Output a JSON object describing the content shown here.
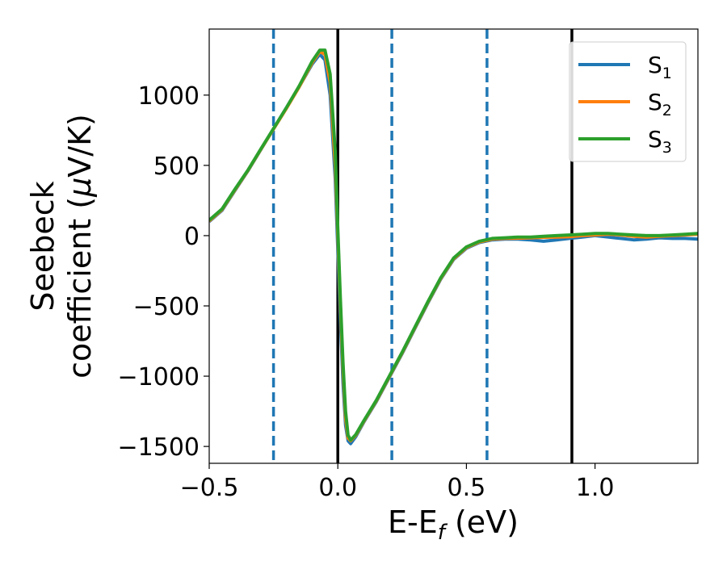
{
  "chart_data": {
    "type": "line",
    "xlabel": {
      "main": "E-E",
      "sub": "f",
      "unit": " (eV)"
    },
    "ylabel": {
      "line1": "Seebeck",
      "line2": "coefficient  (",
      "mu": "μ",
      "line2_end": "V/K)"
    },
    "xlim": [
      -0.5,
      1.4
    ],
    "ylim": [
      -1620,
      1470
    ],
    "xticks": [
      {
        "value": -0.5,
        "label": "−0.5"
      },
      {
        "value": 0.0,
        "label": "0.0"
      },
      {
        "value": 0.5,
        "label": "0.5"
      },
      {
        "value": 1.0,
        "label": "1.0"
      }
    ],
    "yticks": [
      {
        "value": 1000,
        "label": "1000"
      },
      {
        "value": 500,
        "label": "500"
      },
      {
        "value": 0,
        "label": "0"
      },
      {
        "value": -500,
        "label": "−500"
      },
      {
        "value": -1000,
        "label": "−1000"
      },
      {
        "value": -1500,
        "label": "−1500"
      }
    ],
    "grid": false,
    "legend_position": "top-right",
    "vlines_solid": [
      0.0,
      0.91
    ],
    "vlines_dashed": [
      -0.25,
      0.21,
      0.58
    ],
    "vline_solid_color": "#000000",
    "vline_dashed_color": "#1f77b4",
    "series": [
      {
        "name": "S",
        "sub": "1",
        "color": "#1f77b4",
        "x": [
          -0.5,
          -0.45,
          -0.4,
          -0.35,
          -0.3,
          -0.25,
          -0.2,
          -0.15,
          -0.1,
          -0.07,
          -0.05,
          -0.03,
          -0.01,
          0.0,
          0.01,
          0.02,
          0.03,
          0.04,
          0.05,
          0.07,
          0.1,
          0.15,
          0.2,
          0.25,
          0.3,
          0.35,
          0.4,
          0.45,
          0.5,
          0.55,
          0.6,
          0.65,
          0.7,
          0.75,
          0.8,
          0.85,
          0.9,
          0.95,
          1.0,
          1.05,
          1.1,
          1.15,
          1.2,
          1.25,
          1.3,
          1.35,
          1.4
        ],
        "y": [
          100,
          180,
          320,
          460,
          610,
          760,
          910,
          1060,
          1220,
          1290,
          1250,
          1000,
          400,
          -100,
          -600,
          -1050,
          -1350,
          -1460,
          -1480,
          -1430,
          -1330,
          -1180,
          -1010,
          -840,
          -660,
          -480,
          -310,
          -170,
          -90,
          -50,
          -30,
          -25,
          -25,
          -30,
          -40,
          -30,
          -20,
          -10,
          0,
          -10,
          -20,
          -30,
          -25,
          -15,
          -20,
          -20,
          -25
        ]
      },
      {
        "name": "S",
        "sub": "2",
        "color": "#ff7f0e",
        "x": [
          -0.5,
          -0.45,
          -0.4,
          -0.35,
          -0.3,
          -0.25,
          -0.2,
          -0.15,
          -0.1,
          -0.07,
          -0.05,
          -0.03,
          -0.01,
          0.0,
          0.01,
          0.02,
          0.03,
          0.04,
          0.05,
          0.07,
          0.1,
          0.15,
          0.2,
          0.25,
          0.3,
          0.35,
          0.4,
          0.45,
          0.5,
          0.55,
          0.6,
          0.65,
          0.7,
          0.75,
          0.8,
          0.85,
          0.9,
          0.95,
          1.0,
          1.05,
          1.1,
          1.15,
          1.2,
          1.25,
          1.3,
          1.35,
          1.4
        ],
        "y": [
          105,
          185,
          325,
          462,
          612,
          758,
          905,
          1058,
          1230,
          1310,
          1290,
          1090,
          500,
          0,
          -500,
          -950,
          -1300,
          -1440,
          -1460,
          -1420,
          -1325,
          -1175,
          -1005,
          -835,
          -655,
          -475,
          -305,
          -165,
          -85,
          -45,
          -25,
          -20,
          -18,
          -15,
          -12,
          -10,
          -8,
          0,
          5,
          10,
          5,
          -5,
          -10,
          -5,
          0,
          5,
          10
        ]
      },
      {
        "name": "S",
        "sub": "3",
        "color": "#2ca02c",
        "x": [
          -0.5,
          -0.45,
          -0.4,
          -0.35,
          -0.3,
          -0.25,
          -0.2,
          -0.15,
          -0.1,
          -0.07,
          -0.05,
          -0.03,
          -0.01,
          0.0,
          0.01,
          0.02,
          0.03,
          0.04,
          0.05,
          0.07,
          0.1,
          0.15,
          0.2,
          0.25,
          0.3,
          0.35,
          0.4,
          0.45,
          0.5,
          0.55,
          0.6,
          0.65,
          0.7,
          0.75,
          0.8,
          0.85,
          0.9,
          0.95,
          1.0,
          1.05,
          1.1,
          1.15,
          1.2,
          1.25,
          1.3,
          1.35,
          1.4
        ],
        "y": [
          110,
          190,
          330,
          465,
          615,
          762,
          910,
          1065,
          1240,
          1320,
          1320,
          1150,
          600,
          50,
          -450,
          -900,
          -1250,
          -1420,
          -1455,
          -1415,
          -1320,
          -1170,
          -1000,
          -830,
          -650,
          -470,
          -300,
          -160,
          -80,
          -40,
          -20,
          -15,
          -10,
          -10,
          -5,
          0,
          5,
          10,
          15,
          15,
          10,
          5,
          0,
          0,
          5,
          10,
          15
        ]
      }
    ]
  }
}
